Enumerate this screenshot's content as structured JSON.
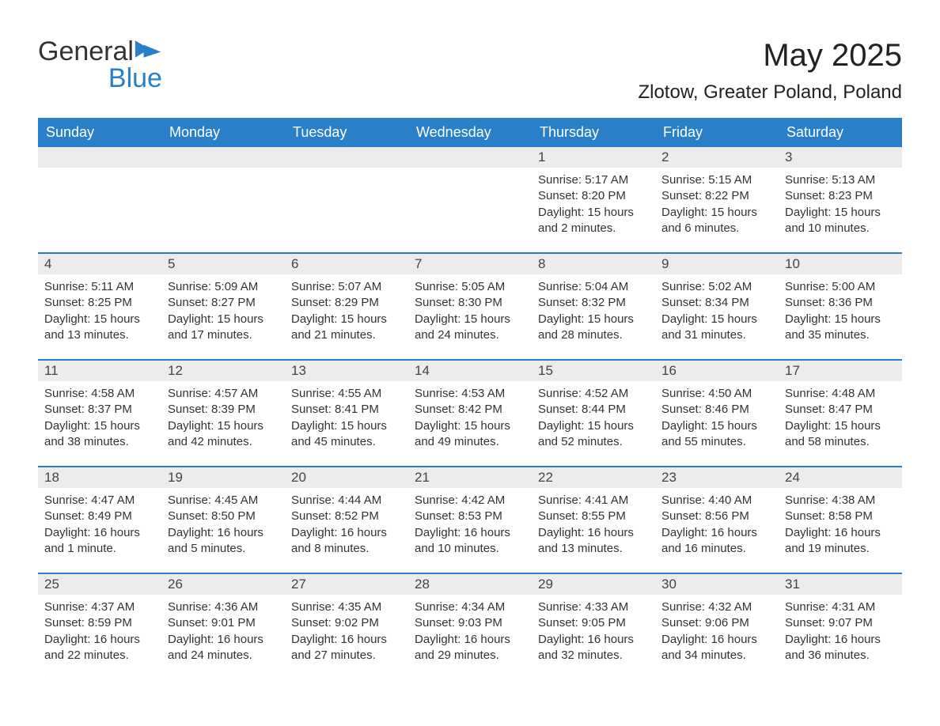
{
  "logo": {
    "word1": "General",
    "word2": "Blue"
  },
  "title": "May 2025",
  "location": "Zlotow, Greater Poland, Poland",
  "colors": {
    "header_bg": "#2a7fc9",
    "header_text": "#ffffff",
    "daynum_bg": "#ececec",
    "rule": "#2a7fc9",
    "body_text": "#333333"
  },
  "day_of_week": [
    "Sunday",
    "Monday",
    "Tuesday",
    "Wednesday",
    "Thursday",
    "Friday",
    "Saturday"
  ],
  "weeks": [
    [
      null,
      null,
      null,
      null,
      {
        "n": "1",
        "sunrise": "Sunrise: 5:17 AM",
        "sunset": "Sunset: 8:20 PM",
        "daylight": "Daylight: 15 hours and 2 minutes."
      },
      {
        "n": "2",
        "sunrise": "Sunrise: 5:15 AM",
        "sunset": "Sunset: 8:22 PM",
        "daylight": "Daylight: 15 hours and 6 minutes."
      },
      {
        "n": "3",
        "sunrise": "Sunrise: 5:13 AM",
        "sunset": "Sunset: 8:23 PM",
        "daylight": "Daylight: 15 hours and 10 minutes."
      }
    ],
    [
      {
        "n": "4",
        "sunrise": "Sunrise: 5:11 AM",
        "sunset": "Sunset: 8:25 PM",
        "daylight": "Daylight: 15 hours and 13 minutes."
      },
      {
        "n": "5",
        "sunrise": "Sunrise: 5:09 AM",
        "sunset": "Sunset: 8:27 PM",
        "daylight": "Daylight: 15 hours and 17 minutes."
      },
      {
        "n": "6",
        "sunrise": "Sunrise: 5:07 AM",
        "sunset": "Sunset: 8:29 PM",
        "daylight": "Daylight: 15 hours and 21 minutes."
      },
      {
        "n": "7",
        "sunrise": "Sunrise: 5:05 AM",
        "sunset": "Sunset: 8:30 PM",
        "daylight": "Daylight: 15 hours and 24 minutes."
      },
      {
        "n": "8",
        "sunrise": "Sunrise: 5:04 AM",
        "sunset": "Sunset: 8:32 PM",
        "daylight": "Daylight: 15 hours and 28 minutes."
      },
      {
        "n": "9",
        "sunrise": "Sunrise: 5:02 AM",
        "sunset": "Sunset: 8:34 PM",
        "daylight": "Daylight: 15 hours and 31 minutes."
      },
      {
        "n": "10",
        "sunrise": "Sunrise: 5:00 AM",
        "sunset": "Sunset: 8:36 PM",
        "daylight": "Daylight: 15 hours and 35 minutes."
      }
    ],
    [
      {
        "n": "11",
        "sunrise": "Sunrise: 4:58 AM",
        "sunset": "Sunset: 8:37 PM",
        "daylight": "Daylight: 15 hours and 38 minutes."
      },
      {
        "n": "12",
        "sunrise": "Sunrise: 4:57 AM",
        "sunset": "Sunset: 8:39 PM",
        "daylight": "Daylight: 15 hours and 42 minutes."
      },
      {
        "n": "13",
        "sunrise": "Sunrise: 4:55 AM",
        "sunset": "Sunset: 8:41 PM",
        "daylight": "Daylight: 15 hours and 45 minutes."
      },
      {
        "n": "14",
        "sunrise": "Sunrise: 4:53 AM",
        "sunset": "Sunset: 8:42 PM",
        "daylight": "Daylight: 15 hours and 49 minutes."
      },
      {
        "n": "15",
        "sunrise": "Sunrise: 4:52 AM",
        "sunset": "Sunset: 8:44 PM",
        "daylight": "Daylight: 15 hours and 52 minutes."
      },
      {
        "n": "16",
        "sunrise": "Sunrise: 4:50 AM",
        "sunset": "Sunset: 8:46 PM",
        "daylight": "Daylight: 15 hours and 55 minutes."
      },
      {
        "n": "17",
        "sunrise": "Sunrise: 4:48 AM",
        "sunset": "Sunset: 8:47 PM",
        "daylight": "Daylight: 15 hours and 58 minutes."
      }
    ],
    [
      {
        "n": "18",
        "sunrise": "Sunrise: 4:47 AM",
        "sunset": "Sunset: 8:49 PM",
        "daylight": "Daylight: 16 hours and 1 minute."
      },
      {
        "n": "19",
        "sunrise": "Sunrise: 4:45 AM",
        "sunset": "Sunset: 8:50 PM",
        "daylight": "Daylight: 16 hours and 5 minutes."
      },
      {
        "n": "20",
        "sunrise": "Sunrise: 4:44 AM",
        "sunset": "Sunset: 8:52 PM",
        "daylight": "Daylight: 16 hours and 8 minutes."
      },
      {
        "n": "21",
        "sunrise": "Sunrise: 4:42 AM",
        "sunset": "Sunset: 8:53 PM",
        "daylight": "Daylight: 16 hours and 10 minutes."
      },
      {
        "n": "22",
        "sunrise": "Sunrise: 4:41 AM",
        "sunset": "Sunset: 8:55 PM",
        "daylight": "Daylight: 16 hours and 13 minutes."
      },
      {
        "n": "23",
        "sunrise": "Sunrise: 4:40 AM",
        "sunset": "Sunset: 8:56 PM",
        "daylight": "Daylight: 16 hours and 16 minutes."
      },
      {
        "n": "24",
        "sunrise": "Sunrise: 4:38 AM",
        "sunset": "Sunset: 8:58 PM",
        "daylight": "Daylight: 16 hours and 19 minutes."
      }
    ],
    [
      {
        "n": "25",
        "sunrise": "Sunrise: 4:37 AM",
        "sunset": "Sunset: 8:59 PM",
        "daylight": "Daylight: 16 hours and 22 minutes."
      },
      {
        "n": "26",
        "sunrise": "Sunrise: 4:36 AM",
        "sunset": "Sunset: 9:01 PM",
        "daylight": "Daylight: 16 hours and 24 minutes."
      },
      {
        "n": "27",
        "sunrise": "Sunrise: 4:35 AM",
        "sunset": "Sunset: 9:02 PM",
        "daylight": "Daylight: 16 hours and 27 minutes."
      },
      {
        "n": "28",
        "sunrise": "Sunrise: 4:34 AM",
        "sunset": "Sunset: 9:03 PM",
        "daylight": "Daylight: 16 hours and 29 minutes."
      },
      {
        "n": "29",
        "sunrise": "Sunrise: 4:33 AM",
        "sunset": "Sunset: 9:05 PM",
        "daylight": "Daylight: 16 hours and 32 minutes."
      },
      {
        "n": "30",
        "sunrise": "Sunrise: 4:32 AM",
        "sunset": "Sunset: 9:06 PM",
        "daylight": "Daylight: 16 hours and 34 minutes."
      },
      {
        "n": "31",
        "sunrise": "Sunrise: 4:31 AM",
        "sunset": "Sunset: 9:07 PM",
        "daylight": "Daylight: 16 hours and 36 minutes."
      }
    ]
  ]
}
